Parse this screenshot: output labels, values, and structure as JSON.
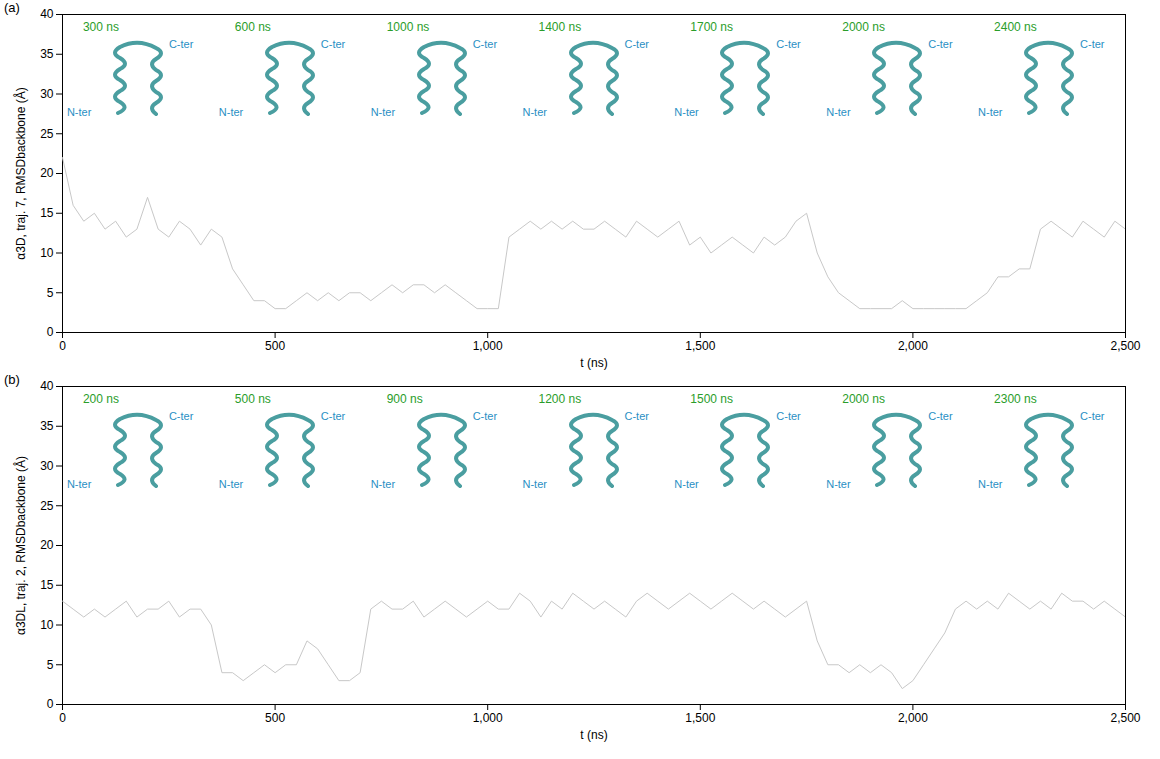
{
  "chart_data": [
    {
      "type": "line",
      "panel_label": "(a)",
      "x_label": "t (ns)",
      "y_label": "α3D, traj. 7, RMSDbackbone (Å)",
      "xlim": [
        0,
        2500
      ],
      "xticks": [
        0,
        500,
        1000,
        1500,
        2000,
        2500
      ],
      "ylim": [
        0,
        40
      ],
      "yticks": [
        0,
        5,
        10,
        15,
        20,
        25,
        30,
        35,
        40
      ],
      "x": [
        0,
        25,
        50,
        75,
        100,
        125,
        150,
        175,
        200,
        225,
        250,
        275,
        300,
        325,
        350,
        375,
        400,
        425,
        450,
        475,
        500,
        525,
        550,
        575,
        600,
        625,
        650,
        675,
        700,
        725,
        750,
        775,
        800,
        825,
        850,
        875,
        900,
        925,
        950,
        975,
        1000,
        1025,
        1050,
        1075,
        1100,
        1125,
        1150,
        1175,
        1200,
        1225,
        1250,
        1275,
        1300,
        1325,
        1350,
        1375,
        1400,
        1425,
        1450,
        1475,
        1500,
        1525,
        1550,
        1575,
        1600,
        1625,
        1650,
        1675,
        1700,
        1725,
        1750,
        1775,
        1800,
        1825,
        1850,
        1875,
        1900,
        1925,
        1950,
        1975,
        2000,
        2025,
        2050,
        2075,
        2100,
        2125,
        2150,
        2175,
        2200,
        2225,
        2250,
        2275,
        2300,
        2325,
        2350,
        2375,
        2400,
        2425,
        2450,
        2475,
        2500
      ],
      "series": [
        {
          "color": "#c8c8c8",
          "values": [
            22,
            16,
            14,
            15,
            13,
            14,
            12,
            13,
            17,
            13,
            12,
            14,
            13,
            11,
            13,
            12,
            8,
            6,
            4,
            4,
            3,
            3,
            4,
            5,
            4,
            5,
            4,
            5,
            5,
            4,
            5,
            6,
            5,
            6,
            6,
            5,
            6,
            5,
            4,
            3,
            3,
            3,
            12,
            13,
            14,
            13,
            14,
            13,
            14,
            13,
            13,
            14,
            13,
            12,
            14,
            13,
            12,
            13,
            14,
            11,
            12,
            10,
            11,
            12,
            11,
            10,
            12,
            11,
            12,
            14,
            15,
            10,
            7,
            5,
            4,
            3,
            3,
            3,
            3,
            4,
            3,
            3,
            3,
            3,
            3,
            3,
            4,
            5,
            7,
            7,
            8,
            8,
            13,
            14,
            13,
            12,
            14,
            13,
            12,
            14,
            13
          ]
        }
      ],
      "annotations": [
        {
          "text": "300 ns",
          "ends": [
            "N-ter",
            "C-ter"
          ]
        },
        {
          "text": "600 ns",
          "ends": [
            "N-ter",
            "C-ter"
          ]
        },
        {
          "text": "1000 ns",
          "ends": [
            "N-ter",
            "C-ter"
          ]
        },
        {
          "text": "1400 ns",
          "ends": [
            "N-ter",
            "C-ter"
          ]
        },
        {
          "text": "1700 ns",
          "ends": [
            "N-ter",
            "C-ter"
          ]
        },
        {
          "text": "2000 ns",
          "ends": [
            "N-ter",
            "C-ter"
          ]
        },
        {
          "text": "2400 ns",
          "ends": [
            "N-ter",
            "C-ter"
          ]
        }
      ]
    },
    {
      "type": "line",
      "panel_label": "(b)",
      "x_label": "t (ns)",
      "y_label": "α3DL, traj. 2, RMSDbackbone (Å)",
      "xlim": [
        0,
        2500
      ],
      "xticks": [
        0,
        500,
        1000,
        1500,
        2000,
        2500
      ],
      "ylim": [
        0,
        40
      ],
      "yticks": [
        0,
        5,
        10,
        15,
        20,
        25,
        30,
        35,
        40
      ],
      "x": [
        0,
        25,
        50,
        75,
        100,
        125,
        150,
        175,
        200,
        225,
        250,
        275,
        300,
        325,
        350,
        375,
        400,
        425,
        450,
        475,
        500,
        525,
        550,
        575,
        600,
        625,
        650,
        675,
        700,
        725,
        750,
        775,
        800,
        825,
        850,
        875,
        900,
        925,
        950,
        975,
        1000,
        1025,
        1050,
        1075,
        1100,
        1125,
        1150,
        1175,
        1200,
        1225,
        1250,
        1275,
        1300,
        1325,
        1350,
        1375,
        1400,
        1425,
        1450,
        1475,
        1500,
        1525,
        1550,
        1575,
        1600,
        1625,
        1650,
        1675,
        1700,
        1725,
        1750,
        1775,
        1800,
        1825,
        1850,
        1875,
        1900,
        1925,
        1950,
        1975,
        2000,
        2025,
        2050,
        2075,
        2100,
        2125,
        2150,
        2175,
        2200,
        2225,
        2250,
        2275,
        2300,
        2325,
        2350,
        2375,
        2400,
        2425,
        2450,
        2475,
        2500
      ],
      "series": [
        {
          "color": "#c8c8c8",
          "values": [
            13,
            12,
            11,
            12,
            11,
            12,
            13,
            11,
            12,
            12,
            13,
            11,
            12,
            12,
            10,
            4,
            4,
            3,
            4,
            5,
            4,
            5,
            5,
            8,
            7,
            5,
            3,
            3,
            4,
            12,
            13,
            12,
            12,
            13,
            11,
            12,
            13,
            12,
            11,
            12,
            13,
            12,
            12,
            14,
            13,
            11,
            13,
            12,
            14,
            13,
            12,
            13,
            12,
            11,
            13,
            14,
            13,
            12,
            13,
            14,
            13,
            12,
            13,
            14,
            13,
            12,
            13,
            12,
            11,
            12,
            13,
            8,
            5,
            5,
            4,
            5,
            4,
            5,
            4,
            2,
            3,
            5,
            7,
            9,
            12,
            13,
            12,
            13,
            12,
            14,
            13,
            12,
            13,
            12,
            14,
            13,
            13,
            12,
            13,
            12,
            11
          ]
        }
      ],
      "annotations": [
        {
          "text": "200 ns",
          "ends": [
            "N-ter",
            "C-ter"
          ]
        },
        {
          "text": "500 ns",
          "ends": [
            "N-ter",
            "C-ter"
          ]
        },
        {
          "text": "900 ns",
          "ends": [
            "N-ter",
            "C-ter"
          ]
        },
        {
          "text": "1200 ns",
          "ends": [
            "N-ter",
            "C-ter"
          ]
        },
        {
          "text": "1500 ns",
          "ends": [
            "N-ter",
            "C-ter"
          ]
        },
        {
          "text": "2000 ns",
          "ends": [
            "N-ter",
            "C-ter"
          ]
        },
        {
          "text": "2300 ns",
          "ends": [
            "N-ter",
            "C-ter"
          ]
        }
      ]
    }
  ]
}
